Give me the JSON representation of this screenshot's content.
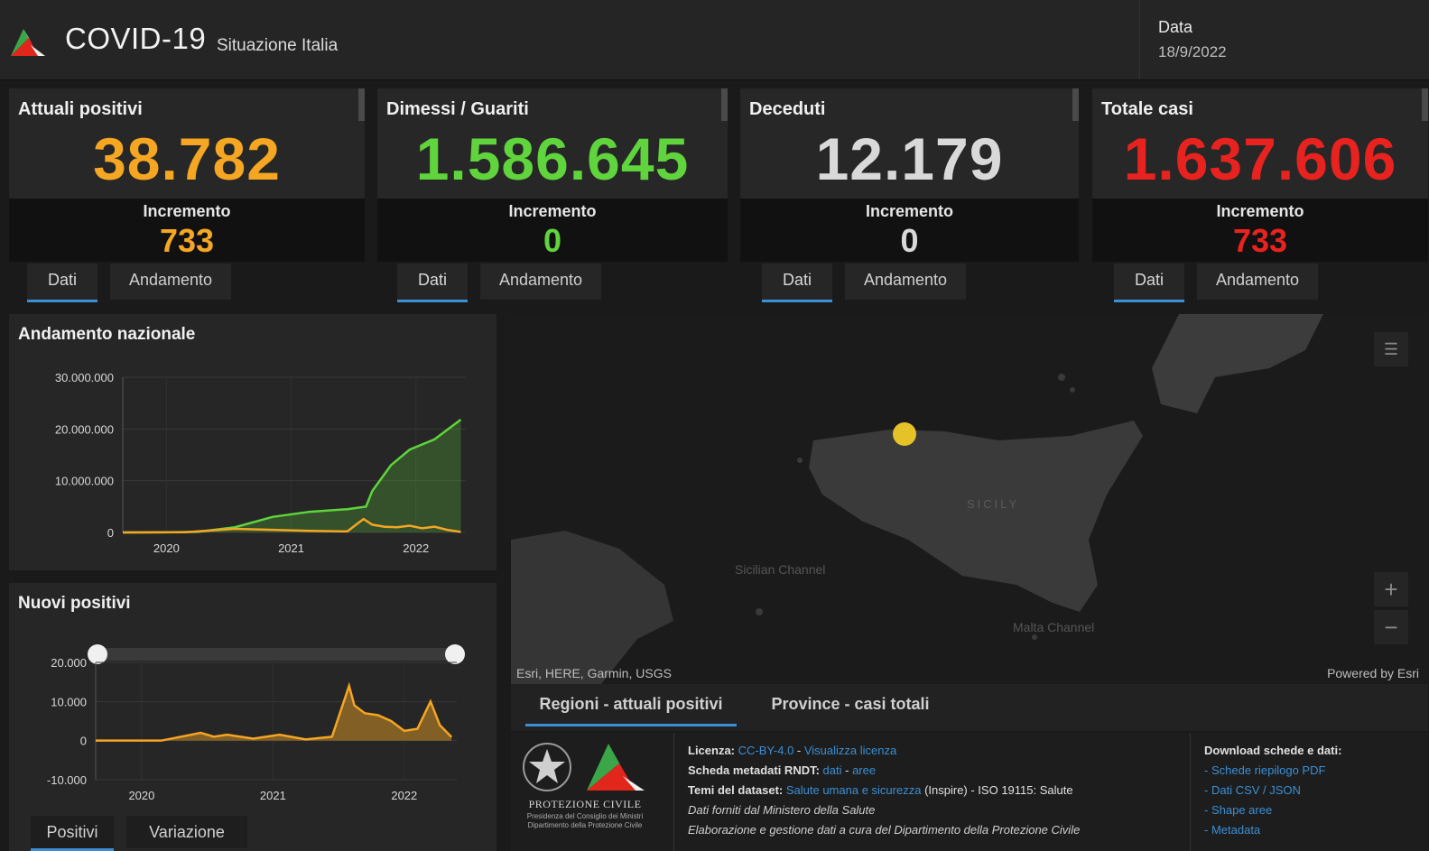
{
  "header": {
    "title": "COVID-19",
    "subtitle": "Situazione Italia",
    "date_label": "Data",
    "date_value": "18/9/2022"
  },
  "cards": [
    {
      "label": "Attuali positivi",
      "value": "38.782",
      "inc_label": "Incremento",
      "inc_value": "733",
      "color": "#f5a623",
      "tab_dati": "Dati",
      "tab_andamento": "Andamento"
    },
    {
      "label": "Dimessi / Guariti",
      "value": "1.586.645",
      "inc_label": "Incremento",
      "inc_value": "0",
      "color": "#5fd43c",
      "tab_dati": "Dati",
      "tab_andamento": "Andamento"
    },
    {
      "label": "Deceduti",
      "value": "12.179",
      "inc_label": "Incremento",
      "inc_value": "0",
      "color": "#d9d9d9",
      "tab_dati": "Dati",
      "tab_andamento": "Andamento"
    },
    {
      "label": "Totale casi",
      "value": "1.637.606",
      "inc_label": "Incremento",
      "inc_value": "733",
      "color": "#e8231f",
      "tab_dati": "Dati",
      "tab_andamento": "Andamento"
    }
  ],
  "chart_data": [
    {
      "type": "line",
      "title": "Andamento nazionale",
      "x_ticks": [
        "2020",
        "2021",
        "2022"
      ],
      "y_ticks": [
        "30.000.000",
        "20.000.000",
        "10.000.000",
        "0"
      ],
      "ylim": [
        0,
        30000000
      ],
      "series": [
        {
          "color": "#5fd43c",
          "x": [
            2020.0,
            2020.3,
            2020.6,
            2020.9,
            2021.2,
            2021.5,
            2021.8,
            2021.95,
            2022.0,
            2022.15,
            2022.3,
            2022.5,
            2022.71
          ],
          "y": [
            0,
            20000,
            100000,
            1000000,
            3000000,
            4000000,
            4500000,
            5000000,
            8000000,
            13000000,
            16000000,
            18000000,
            21800000
          ]
        },
        {
          "color": "#f5a623",
          "x": [
            2020.0,
            2020.5,
            2020.9,
            2021.2,
            2021.5,
            2021.8,
            2021.93,
            2022.0,
            2022.1,
            2022.2,
            2022.3,
            2022.4,
            2022.5,
            2022.6,
            2022.71
          ],
          "y": [
            0,
            50000,
            700000,
            500000,
            300000,
            200000,
            2600000,
            1500000,
            1100000,
            1000000,
            1300000,
            800000,
            1100000,
            500000,
            100000
          ]
        }
      ]
    },
    {
      "type": "area",
      "title": "Nuovi positivi",
      "x_ticks": [
        "2020",
        "2021",
        "2022"
      ],
      "y_ticks": [
        "20.000",
        "10.000",
        "0",
        "-10.000"
      ],
      "ylim": [
        -10000,
        20000
      ],
      "series": [
        {
          "color": "#f5a623",
          "x": [
            2020.0,
            2020.5,
            2020.8,
            2020.9,
            2021.0,
            2021.2,
            2021.4,
            2021.6,
            2021.8,
            2021.93,
            2021.97,
            2022.05,
            2022.15,
            2022.25,
            2022.35,
            2022.45,
            2022.55,
            2022.62,
            2022.71
          ],
          "y": [
            0,
            0,
            2000,
            1000,
            1500,
            500,
            1500,
            300,
            1000,
            14000,
            9000,
            7000,
            6500,
            5000,
            2500,
            3000,
            10000,
            4000,
            900
          ]
        }
      ]
    }
  ],
  "chart_tabs": {
    "positivi": "Positivi",
    "variazione": "Variazione"
  },
  "map": {
    "region_label": "SICILY",
    "sea_label_1": "Sicilian Channel",
    "sea_label_2": "Malta Channel",
    "credit": "Esri, HERE, Garmin, USGS",
    "powered": "Powered by Esri",
    "marker_color": "#e6c229",
    "zoom_in": "+",
    "zoom_out": "−"
  },
  "bottom_tabs": {
    "tab1": "Regioni - attuali positivi",
    "tab2": "Province - casi totali"
  },
  "footer": {
    "logo_text": "PROTEZIONE CIVILE",
    "logo_sub1": "Presidenza del Consiglio dei Ministri",
    "logo_sub2": "Dipartimento della Protezione Civile",
    "licenza_label": "Licenza:",
    "licenza_link": "CC-BY-4.0",
    "licenza_sep": " - ",
    "licenza_link2": "Visualizza licenza",
    "scheda_label": "Scheda metadati RNDT:",
    "scheda_link1": "dati",
    "scheda_link2": "aree",
    "temi_label": "Temi del dataset:",
    "temi_link": "Salute umana e sicurezza",
    "temi_rest": "(Inspire) - ISO 19115: Salute",
    "line4": "Dati forniti dal Ministero della Salute",
    "line5": "Elaborazione e gestione dati a cura del Dipartimento della Protezione Civile",
    "download_title": "Download schede e dati:",
    "downloads": [
      "Schede riepilogo PDF",
      "Dati CSV / JSON",
      "Shape aree",
      "Metadata"
    ]
  }
}
